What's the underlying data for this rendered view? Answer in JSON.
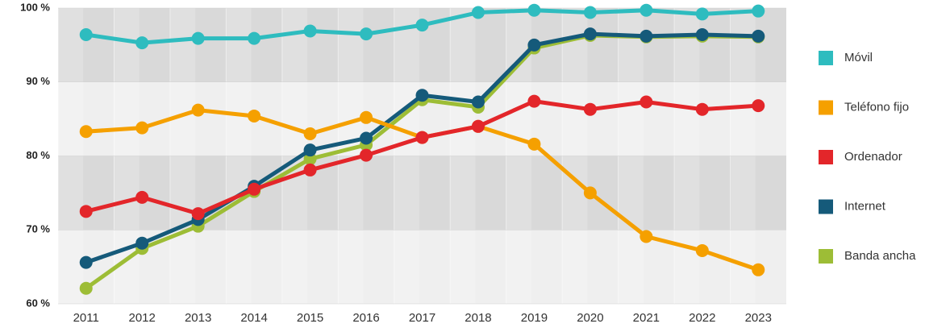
{
  "chart_data": {
    "type": "line",
    "categories": [
      "2011",
      "2012",
      "2013",
      "2014",
      "2015",
      "2016",
      "2017",
      "2018",
      "2019",
      "2020",
      "2021",
      "2022",
      "2023"
    ],
    "series": [
      {
        "name": "Móvil",
        "color": "#2ebcbf",
        "values": [
          96.4,
          95.3,
          95.9,
          95.9,
          96.9,
          96.5,
          97.7,
          99.4,
          99.7,
          99.4,
          99.7,
          99.2,
          99.6
        ]
      },
      {
        "name": "Teléfono fijo",
        "color": "#f5a000",
        "values": [
          83.3,
          83.8,
          86.2,
          85.4,
          83.0,
          85.2,
          82.5,
          84.0,
          81.6,
          75.0,
          69.1,
          67.2,
          64.6
        ]
      },
      {
        "name": "Ordenador",
        "color": "#e3262a",
        "values": [
          72.5,
          74.4,
          72.2,
          75.5,
          78.1,
          80.1,
          82.5,
          84.0,
          87.4,
          86.3,
          87.3,
          86.3,
          86.8
        ]
      },
      {
        "name": "Internet",
        "color": "#155a7a",
        "values": [
          65.6,
          68.2,
          71.4,
          75.9,
          80.8,
          82.4,
          88.2,
          87.3,
          95.0,
          96.5,
          96.2,
          96.4,
          96.2
        ]
      },
      {
        "name": "Banda ancha",
        "color": "#9dbd36",
        "values": [
          62.1,
          67.5,
          70.5,
          75.2,
          79.6,
          81.5,
          87.6,
          86.6,
          94.6,
          96.3,
          96.1,
          96.2,
          96.1
        ]
      }
    ],
    "ylim": [
      60,
      100
    ],
    "yticks": [
      {
        "value": 60,
        "label": "60 %"
      },
      {
        "value": 70,
        "label": "70 %"
      },
      {
        "value": 80,
        "label": "80 %"
      },
      {
        "value": 90,
        "label": "90 %"
      },
      {
        "value": 100,
        "label": "100 %"
      }
    ],
    "grid": true,
    "legend": "right"
  }
}
